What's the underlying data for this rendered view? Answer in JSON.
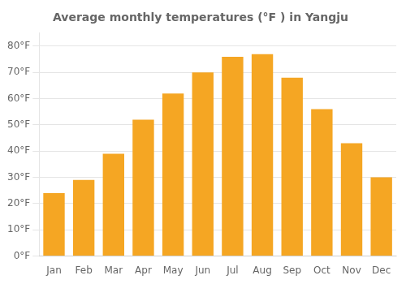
{
  "chart_data": {
    "type": "bar",
    "title": "Average monthly temperatures (°F ) in Yangju",
    "categories": [
      "Jan",
      "Feb",
      "Mar",
      "Apr",
      "May",
      "Jun",
      "Jul",
      "Aug",
      "Sep",
      "Oct",
      "Nov",
      "Dec"
    ],
    "values": [
      24,
      29,
      39,
      52,
      62,
      70,
      76,
      77,
      68,
      56,
      43,
      30
    ],
    "color": "#F5A623",
    "ylim": [
      0,
      85
    ],
    "yticks": [
      {
        "value": 0,
        "label": "0°F"
      },
      {
        "value": 10,
        "label": "10°F"
      },
      {
        "value": 20,
        "label": "20°F"
      },
      {
        "value": 30,
        "label": "30°F"
      },
      {
        "value": 40,
        "label": "40°F"
      },
      {
        "value": 50,
        "label": "50°F"
      },
      {
        "value": 60,
        "label": "60°F"
      },
      {
        "value": 70,
        "label": "70°F"
      },
      {
        "value": 80,
        "label": "80°F"
      }
    ],
    "grid": true
  }
}
